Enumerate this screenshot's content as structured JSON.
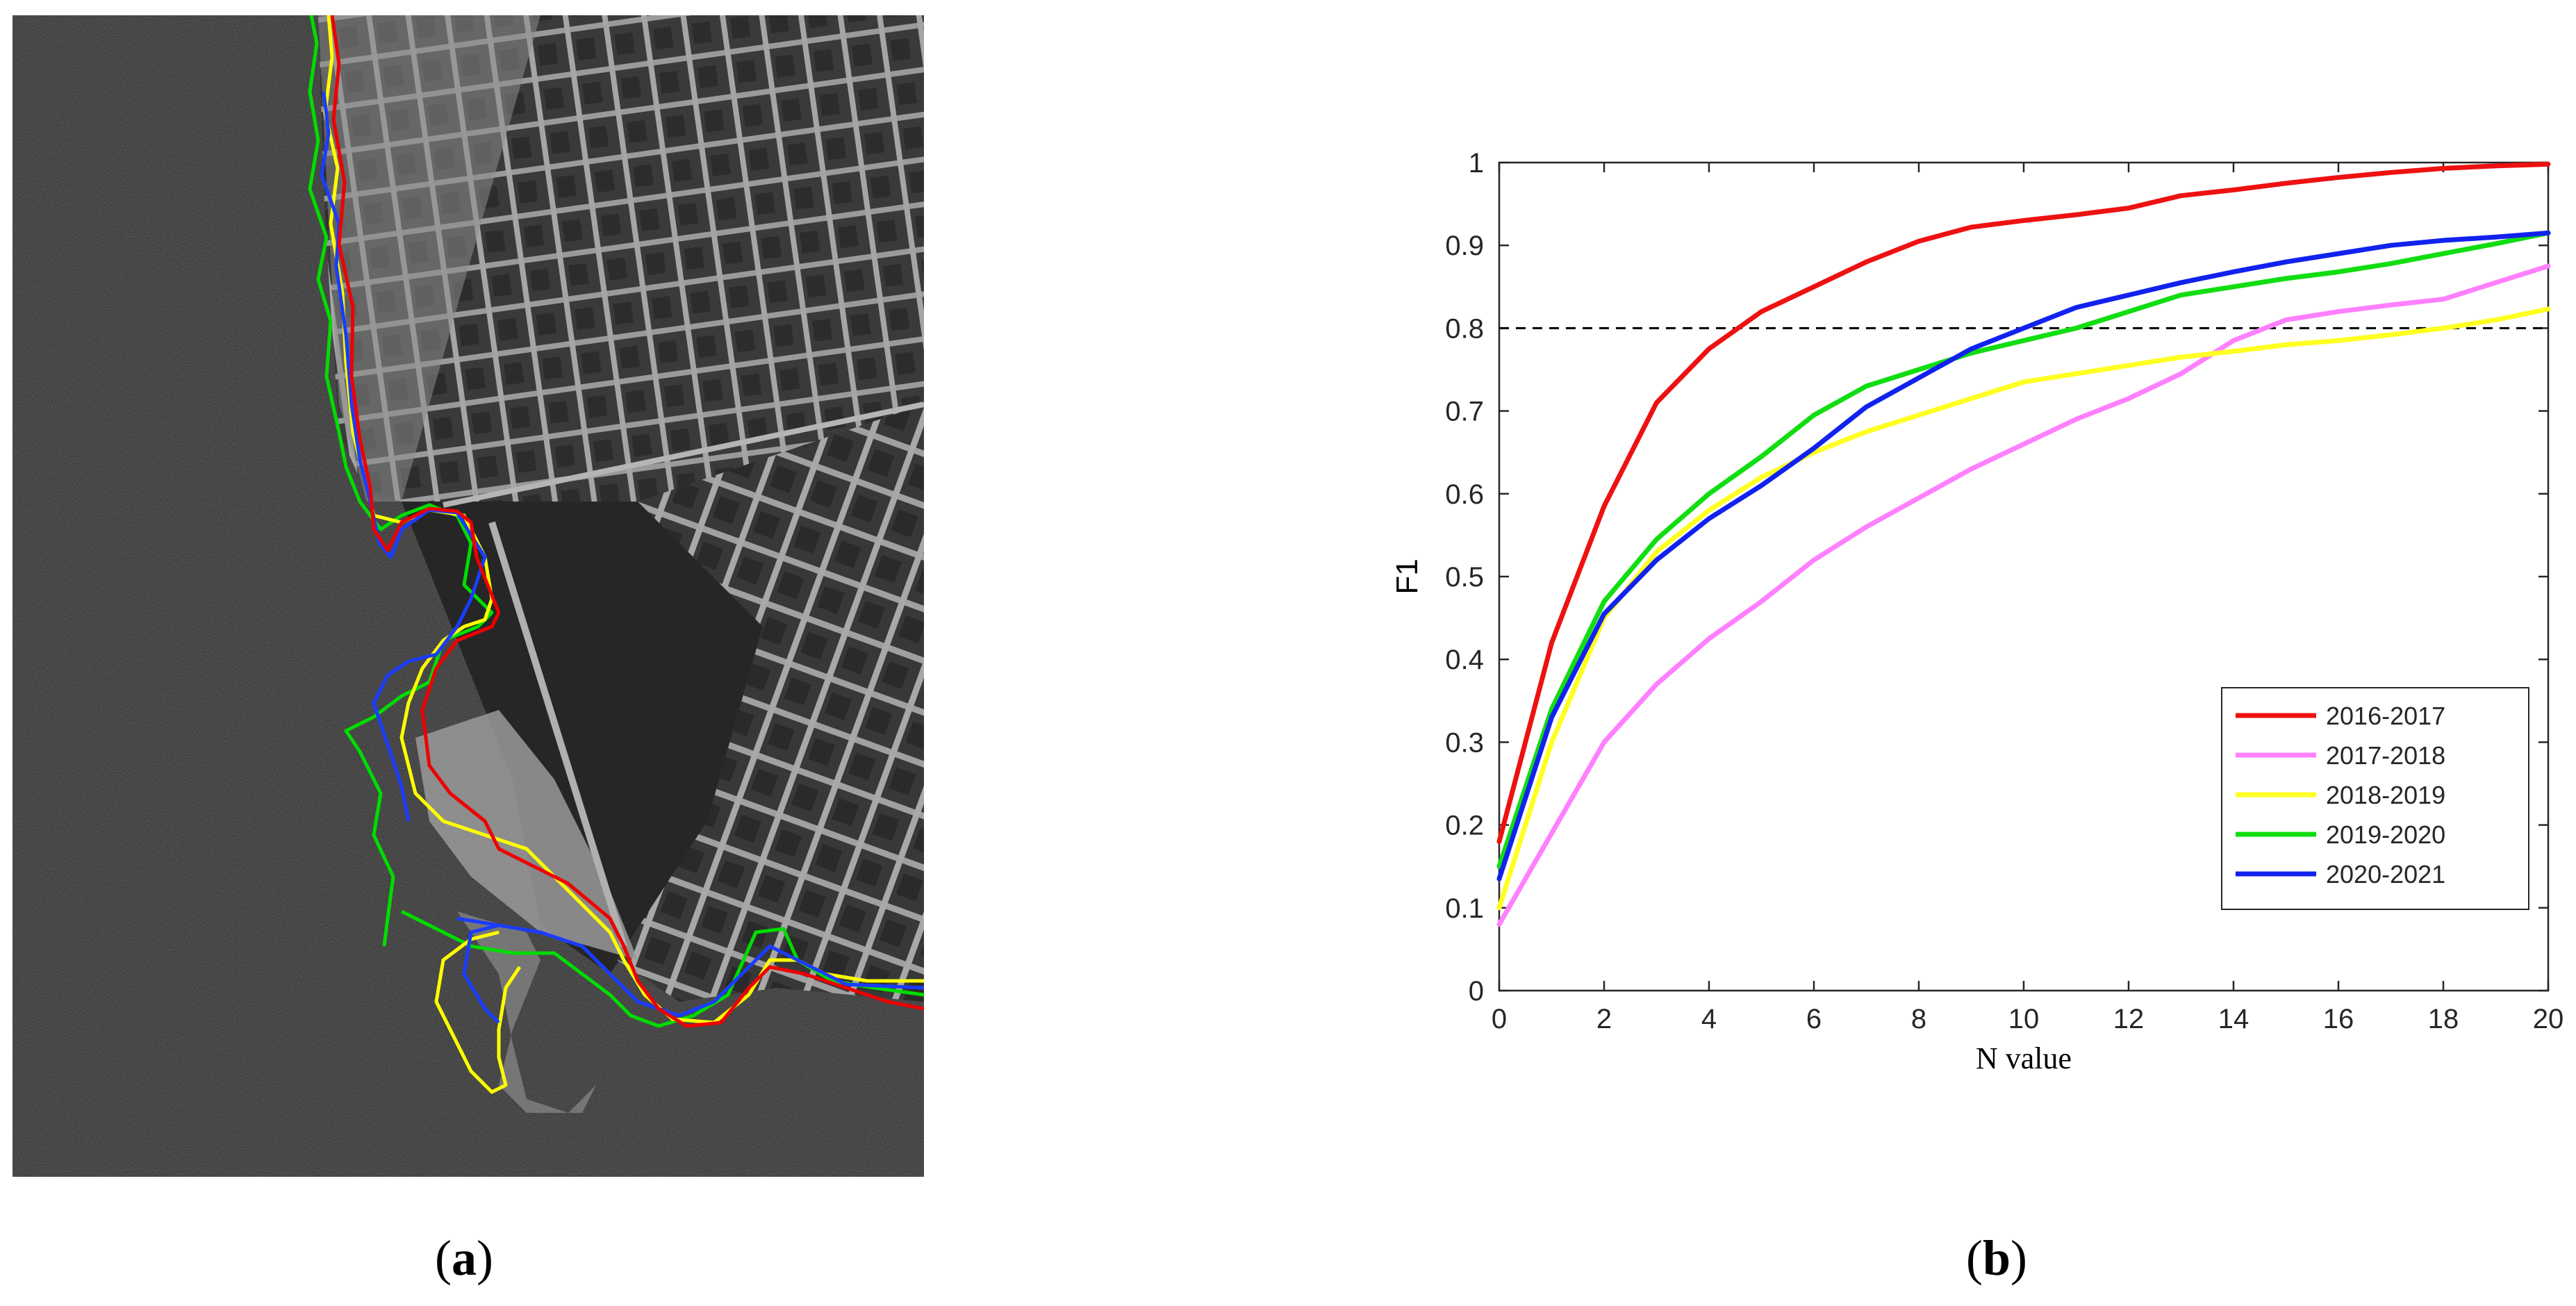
{
  "captions": {
    "a": "a",
    "b": "b"
  },
  "sar_image": {
    "description_icon": "sar-image",
    "line_colors": {
      "2016-2017": "#ee0000",
      "2017-2018": "#ff80ff",
      "2018-2019": "#ffff00",
      "2019-2020": "#00dd00",
      "2020-2021": "#1a3cff"
    }
  },
  "chart_data": {
    "type": "line",
    "xlabel": "N value",
    "ylabel": "F1",
    "xlim": [
      0,
      20
    ],
    "ylim": [
      0,
      1
    ],
    "xticks": [
      0,
      2,
      4,
      6,
      8,
      10,
      12,
      14,
      16,
      18,
      20
    ],
    "yticks": [
      0,
      0.1,
      0.2,
      0.3,
      0.4,
      0.5,
      0.6,
      0.7,
      0.8,
      0.9,
      1
    ],
    "grid": false,
    "legend_position": "bottom-right",
    "threshold_line": {
      "y": 0.8,
      "style": "dashed",
      "color": "#000000"
    },
    "x": [
      0,
      1,
      2,
      3,
      4,
      5,
      6,
      7,
      8,
      9,
      10,
      11,
      12,
      13,
      14,
      15,
      16,
      17,
      18,
      19,
      20
    ],
    "series": [
      {
        "name": "2016-2017",
        "color": "#ee1111",
        "values": [
          0.18,
          0.42,
          0.585,
          0.71,
          0.775,
          0.82,
          0.85,
          0.88,
          0.905,
          0.922,
          0.93,
          0.937,
          0.945,
          0.96,
          0.967,
          0.975,
          0.982,
          0.988,
          0.993,
          0.996,
          0.998
        ]
      },
      {
        "name": "2017-2018",
        "color": "#ff80ff",
        "values": [
          0.08,
          0.19,
          0.3,
          0.37,
          0.425,
          0.47,
          0.52,
          0.56,
          0.595,
          0.63,
          0.66,
          0.69,
          0.715,
          0.745,
          0.785,
          0.81,
          0.82,
          0.828,
          0.835,
          0.855,
          0.875
        ]
      },
      {
        "name": "2018-2019",
        "color": "#ffff22",
        "values": [
          0.1,
          0.3,
          0.45,
          0.53,
          0.58,
          0.62,
          0.65,
          0.675,
          0.695,
          0.715,
          0.735,
          0.745,
          0.755,
          0.765,
          0.772,
          0.78,
          0.785,
          0.792,
          0.8,
          0.81,
          0.823
        ]
      },
      {
        "name": "2019-2020",
        "color": "#11dd11",
        "values": [
          0.15,
          0.34,
          0.47,
          0.545,
          0.6,
          0.645,
          0.695,
          0.73,
          0.75,
          0.77,
          0.785,
          0.8,
          0.82,
          0.84,
          0.85,
          0.86,
          0.868,
          0.878,
          0.89,
          0.902,
          0.915
        ]
      },
      {
        "name": "2020-2021",
        "color": "#1122ee",
        "values": [
          0.135,
          0.33,
          0.455,
          0.52,
          0.57,
          0.61,
          0.655,
          0.705,
          0.74,
          0.775,
          0.8,
          0.825,
          0.84,
          0.855,
          0.868,
          0.88,
          0.89,
          0.9,
          0.906,
          0.91,
          0.915
        ]
      }
    ]
  }
}
